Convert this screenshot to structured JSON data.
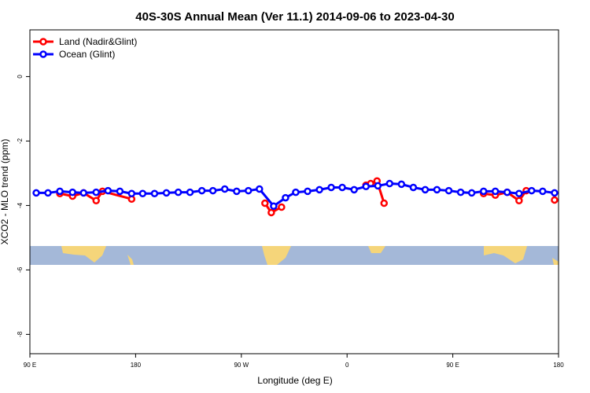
{
  "chart_data": {
    "type": "line",
    "title": "40S-30S Annual Mean (Ver 11.1)   2014-09-06 to 2023-04-30",
    "x_label": "Longitude (deg E)",
    "y_label": "XCO2 - MLO trend (ppm)",
    "xlim": [
      90,
      540
    ],
    "xticks": [
      {
        "value": 90,
        "label": "90 E"
      },
      180,
      {
        "value": 270,
        "label": "90 W"
      },
      {
        "value": 360,
        "label": "0"
      },
      {
        "value": 450,
        "label": "90 E"
      },
      {
        "value": 540,
        "label": "180"
      }
    ],
    "ylim": [
      -8.6,
      1.45
    ],
    "yticks": [
      0,
      -2,
      -4,
      -6,
      -8
    ],
    "legend": "top-left",
    "series": [
      {
        "name": "Land (Nadir&Glint)",
        "color": "#ff0000",
        "x": [
          115.5,
          126.3,
          135.7,
          146.4,
          151.8,
          176.6,
          null,
          290.1,
          295.5,
          304.2,
          null,
          376.1,
          380.1,
          385.5,
          391.5,
          null,
          476.2,
          486.2,
          496.3,
          506.4,
          512.5,
          null,
          536.6
        ],
        "values": [
          -3.63,
          -3.71,
          -3.61,
          -3.85,
          -3.56,
          -3.8,
          null,
          -3.93,
          -4.22,
          -4.05,
          null,
          -3.37,
          -3.32,
          -3.24,
          -3.93,
          null,
          -3.63,
          -3.68,
          -3.59,
          -3.85,
          -3.54,
          null,
          -3.83
        ]
      },
      {
        "name": "Ocean (Glint)",
        "color": "#0000ff",
        "x": [
          95.4,
          105.4,
          115.5,
          126.3,
          135.7,
          146.4,
          156.5,
          166.6,
          176.6,
          186.0,
          196.1,
          206.2,
          216.3,
          226.3,
          236.4,
          245.8,
          255.9,
          266.0,
          276.0,
          285.4,
          297.5,
          307.6,
          316.3,
          326.4,
          336.5,
          346.5,
          355.9,
          366.0,
          376.1,
          386.2,
          396.2,
          406.3,
          416.4,
          426.5,
          436.5,
          446.6,
          456.7,
          466.1,
          476.2,
          486.2,
          496.3,
          506.4,
          517.1,
          526.5,
          536.6
        ],
        "values": [
          -3.61,
          -3.61,
          -3.56,
          -3.59,
          -3.61,
          -3.59,
          -3.54,
          -3.56,
          -3.63,
          -3.63,
          -3.63,
          -3.61,
          -3.59,
          -3.59,
          -3.54,
          -3.54,
          -3.49,
          -3.56,
          -3.54,
          -3.49,
          -4.02,
          -3.76,
          -3.59,
          -3.56,
          -3.51,
          -3.44,
          -3.44,
          -3.51,
          -3.41,
          -3.39,
          -3.32,
          -3.34,
          -3.44,
          -3.51,
          -3.51,
          -3.54,
          -3.59,
          -3.61,
          -3.56,
          -3.56,
          -3.59,
          -3.63,
          -3.54,
          -3.56,
          -3.61
        ]
      }
    ]
  }
}
